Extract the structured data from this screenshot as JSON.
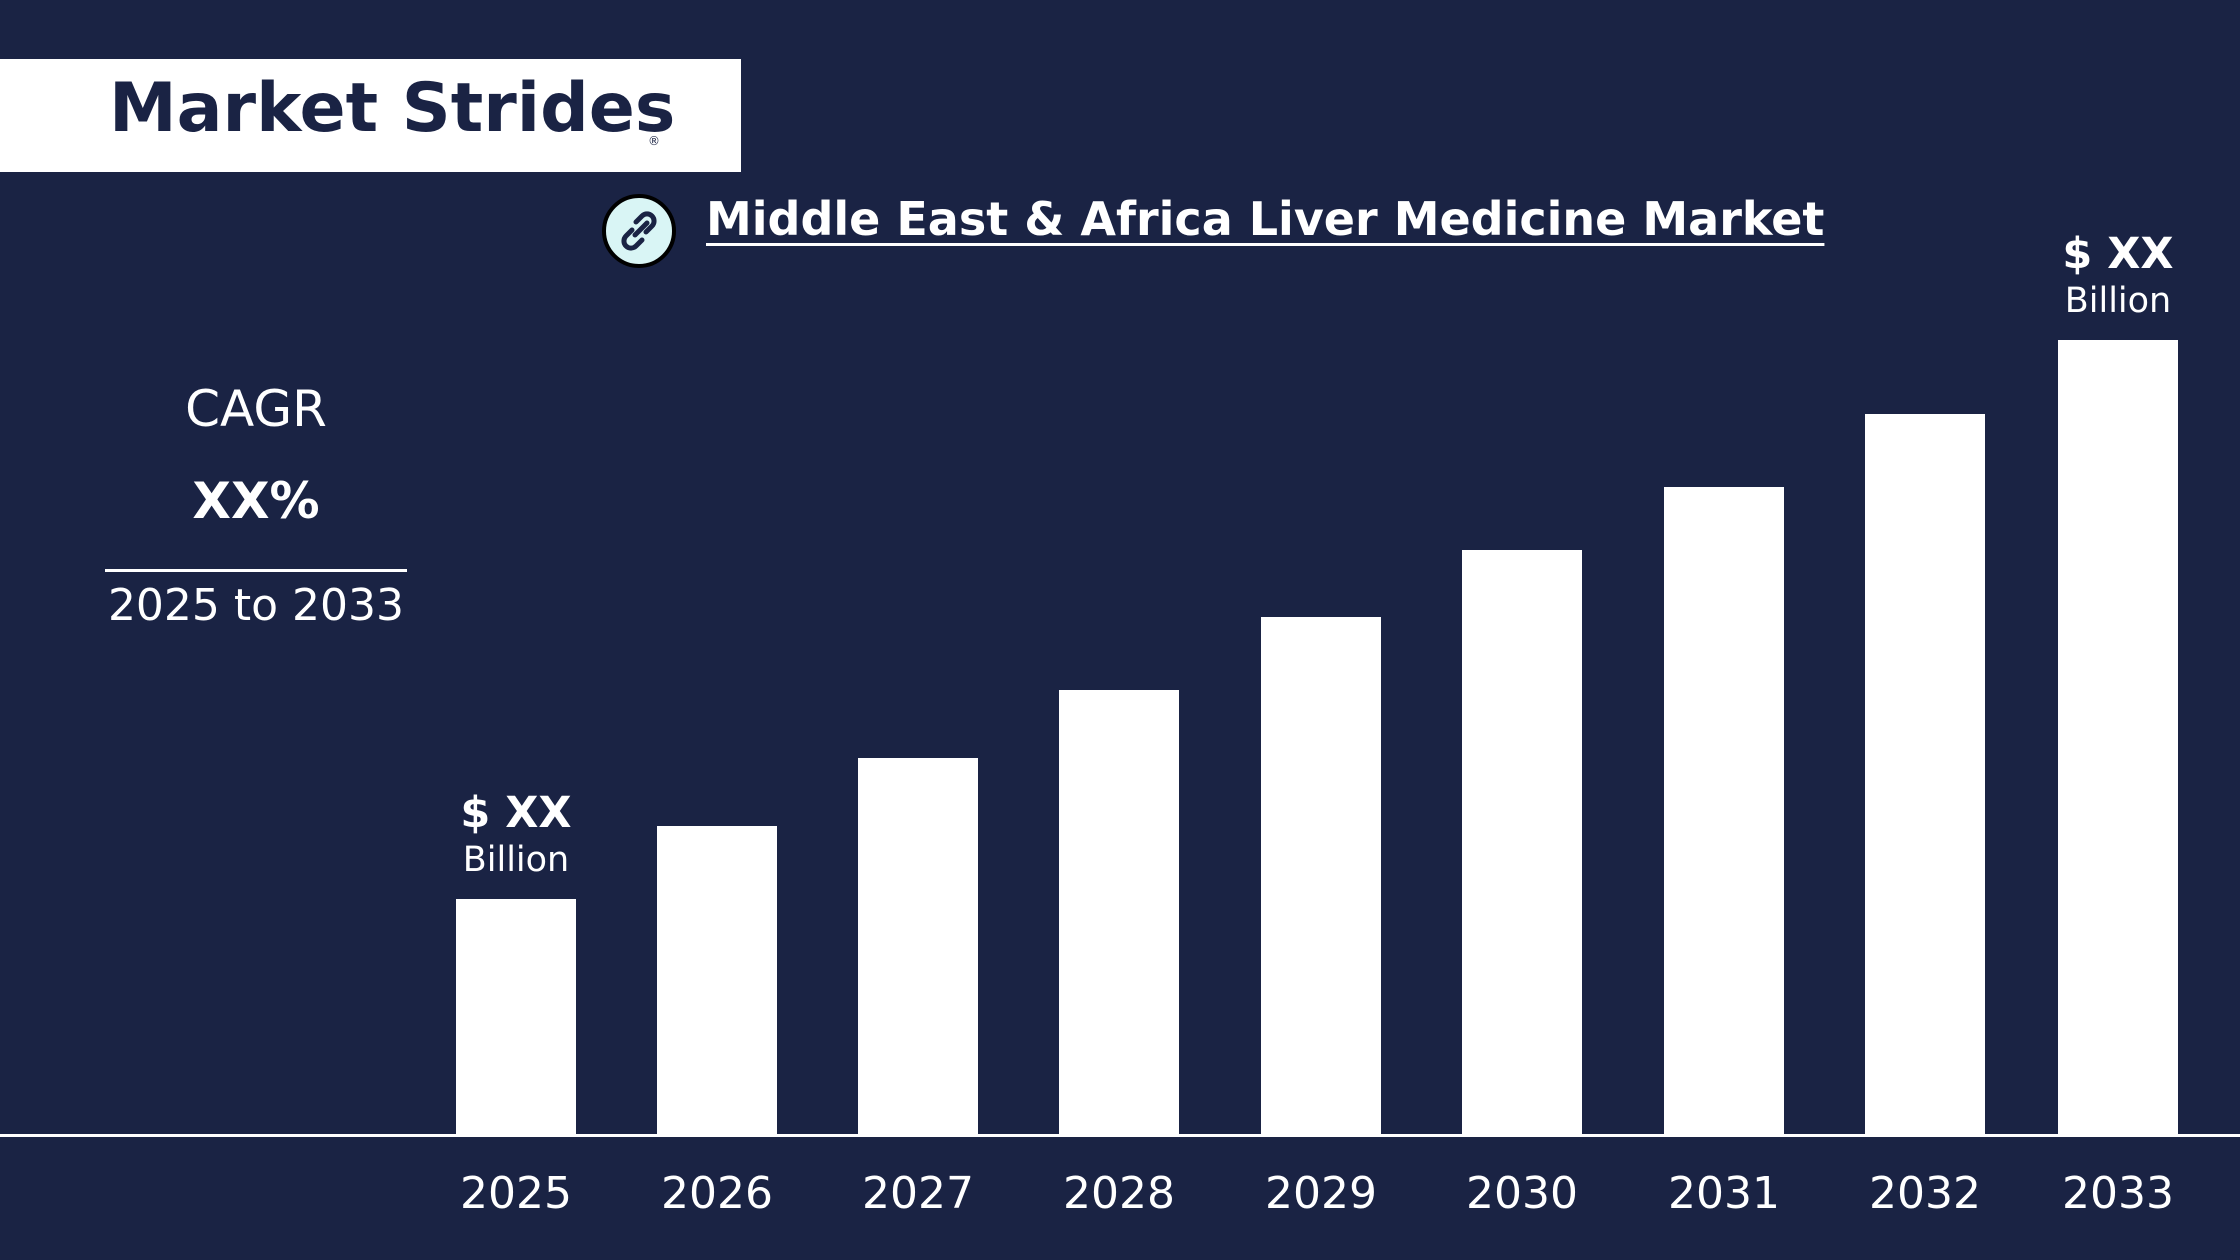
{
  "brand": {
    "logo_text": "Market Strides",
    "registered_mark": "®"
  },
  "header": {
    "icon": "link-icon",
    "title": "Middle East & Africa Liver Medicine Market"
  },
  "cagr": {
    "label": "CAGR",
    "value": "XX%",
    "period": "2025 to 2033"
  },
  "colors": {
    "background": "#1a2344",
    "bars": "#ffffff",
    "logo_box": "#ffffff",
    "icon_fill": "#d9f5f5"
  },
  "chart_data": {
    "type": "bar",
    "categories": [
      "2025",
      "2026",
      "2027",
      "2028",
      "2029",
      "2030",
      "2031",
      "2032",
      "2033"
    ],
    "values": [
      235,
      308,
      376,
      444,
      517,
      584,
      647,
      720,
      794
    ],
    "ylim": [
      0,
      800
    ],
    "grid": false,
    "legend": "none",
    "data_labels": [
      {
        "category": "2025",
        "main": "$ XX",
        "sub": "Billion"
      },
      {
        "category": "2033",
        "main": "$ XX",
        "sub": "Billion"
      }
    ]
  }
}
